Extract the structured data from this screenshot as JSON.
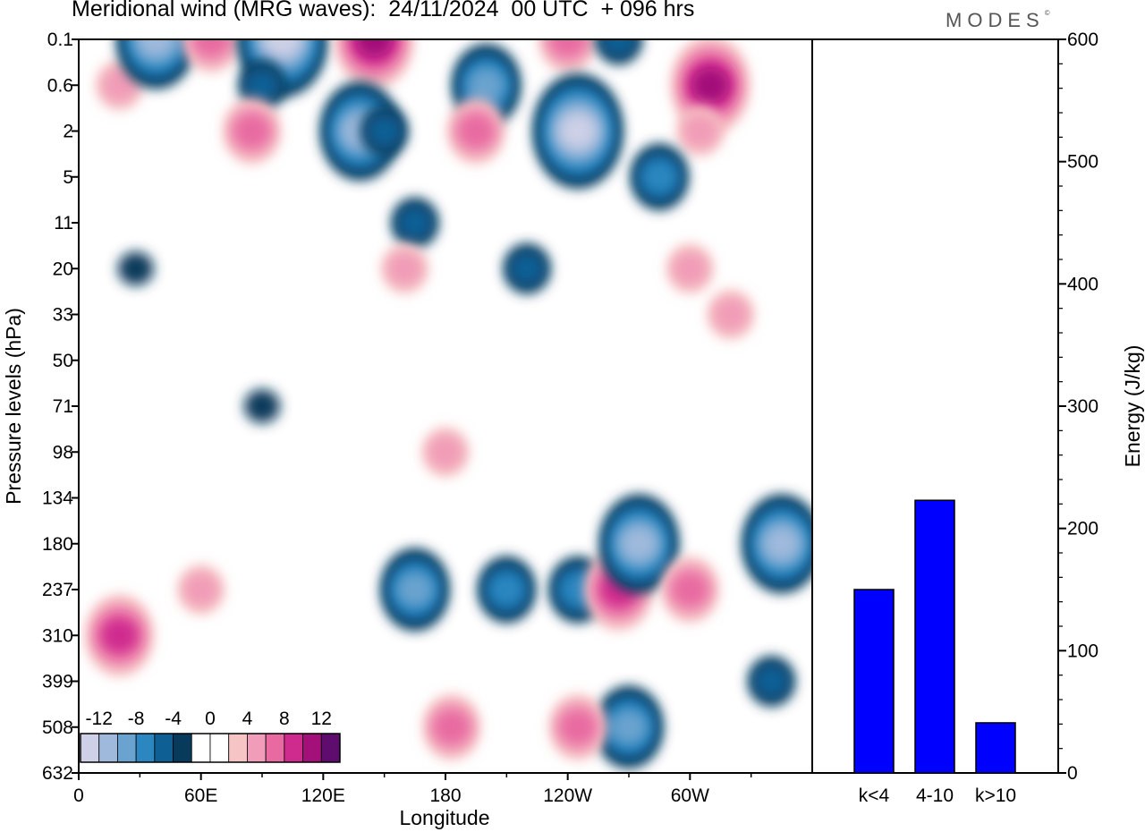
{
  "title": "Meridional wind (MRG waves):  24/11/2024  00 UTC  + 096 hrs",
  "logo": "MODES",
  "logo_mark": "©",
  "colors": {
    "bar": "#0000ff",
    "neg": [
      "#083a5c",
      "#0e5f94",
      "#2c86c0",
      "#6aa3cf",
      "#9fb9dc",
      "#cdd0e6"
    ],
    "pos": [
      "#f6c4c4",
      "#f19cb8",
      "#e86aa0",
      "#cf2b8f",
      "#a3107a",
      "#5e0c6e"
    ]
  },
  "chart_data": [
    {
      "type": "heatmap",
      "title": "Meridional wind (MRG waves):  24/11/2024  00 UTC  + 096 hrs",
      "xlabel": "Longitude",
      "ylabel": "Pressure levels (hPa)",
      "x_ticks": [
        "0",
        "60E",
        "120E",
        "180",
        "120W",
        "60W"
      ],
      "y_ticks": [
        "0.1",
        "0.6",
        "2",
        "5",
        "11",
        "20",
        "33",
        "50",
        "71",
        "98",
        "134",
        "180",
        "237",
        "310",
        "399",
        "508",
        "632"
      ],
      "colorbar": {
        "labels": [
          "-12",
          "-8",
          "-4",
          "0",
          "4",
          "8",
          "12"
        ],
        "levels": [
          -14,
          -12,
          -10,
          -8,
          -6,
          -4,
          -2,
          2,
          4,
          6,
          8,
          10,
          12,
          14
        ]
      },
      "cells": [
        {
          "lon": 20,
          "lev": "0.6",
          "v": 4
        },
        {
          "lon": 38,
          "lev": "0.1",
          "v": -10
        },
        {
          "lon": 65,
          "lev": "0.1",
          "v": 6
        },
        {
          "lon": 100,
          "lev": "0.1",
          "v": -12
        },
        {
          "lon": 90,
          "lev": "0.6",
          "v": -4
        },
        {
          "lon": 85,
          "lev": "2",
          "v": 6
        },
        {
          "lon": 145,
          "lev": "0.1",
          "v": 10
        },
        {
          "lon": 138,
          "lev": "2",
          "v": -10
        },
        {
          "lon": 150,
          "lev": "2",
          "v": -4
        },
        {
          "lon": 200,
          "lev": "0.6",
          "v": -8
        },
        {
          "lon": 195,
          "lev": "2",
          "v": 6
        },
        {
          "lon": 240,
          "lev": "0.1",
          "v": 6
        },
        {
          "lon": 245,
          "lev": "2",
          "v": -12
        },
        {
          "lon": 265,
          "lev": "0.1",
          "v": -4
        },
        {
          "lon": 310,
          "lev": "0.6",
          "v": 10
        },
        {
          "lon": 305,
          "lev": "2",
          "v": 4
        },
        {
          "lon": 285,
          "lev": "5",
          "v": -6
        },
        {
          "lon": 165,
          "lev": "11",
          "v": -4
        },
        {
          "lon": 160,
          "lev": "20",
          "v": 4
        },
        {
          "lon": 220,
          "lev": "20",
          "v": -4
        },
        {
          "lon": 300,
          "lev": "20",
          "v": 4
        },
        {
          "lon": 320,
          "lev": "33",
          "v": 4
        },
        {
          "lon": 28,
          "lev": "20",
          "v": -2
        },
        {
          "lon": 90,
          "lev": "71",
          "v": -2
        },
        {
          "lon": 20,
          "lev": "310",
          "v": 8
        },
        {
          "lon": 60,
          "lev": "237",
          "v": 4
        },
        {
          "lon": 165,
          "lev": "237",
          "v": -8
        },
        {
          "lon": 180,
          "lev": "98",
          "v": 4
        },
        {
          "lon": 210,
          "lev": "237",
          "v": -6
        },
        {
          "lon": 245,
          "lev": "237",
          "v": -6
        },
        {
          "lon": 265,
          "lev": "237",
          "v": 8
        },
        {
          "lon": 275,
          "lev": "180",
          "v": -10
        },
        {
          "lon": 300,
          "lev": "237",
          "v": 6
        },
        {
          "lon": 345,
          "lev": "180",
          "v": -10
        },
        {
          "lon": 270,
          "lev": "508",
          "v": -8
        },
        {
          "lon": 245,
          "lev": "508",
          "v": 6
        },
        {
          "lon": 183,
          "lev": "508",
          "v": 6
        },
        {
          "lon": 340,
          "lev": "399",
          "v": -4
        }
      ]
    },
    {
      "type": "bar",
      "categories": [
        "k<4",
        "4-10",
        "k>10"
      ],
      "values": [
        150,
        223,
        41
      ],
      "ylabel": "Energy (J/kg)",
      "ylim": [
        0,
        600
      ],
      "y_ticks": [
        0,
        100,
        200,
        300,
        400,
        500,
        600
      ]
    }
  ]
}
